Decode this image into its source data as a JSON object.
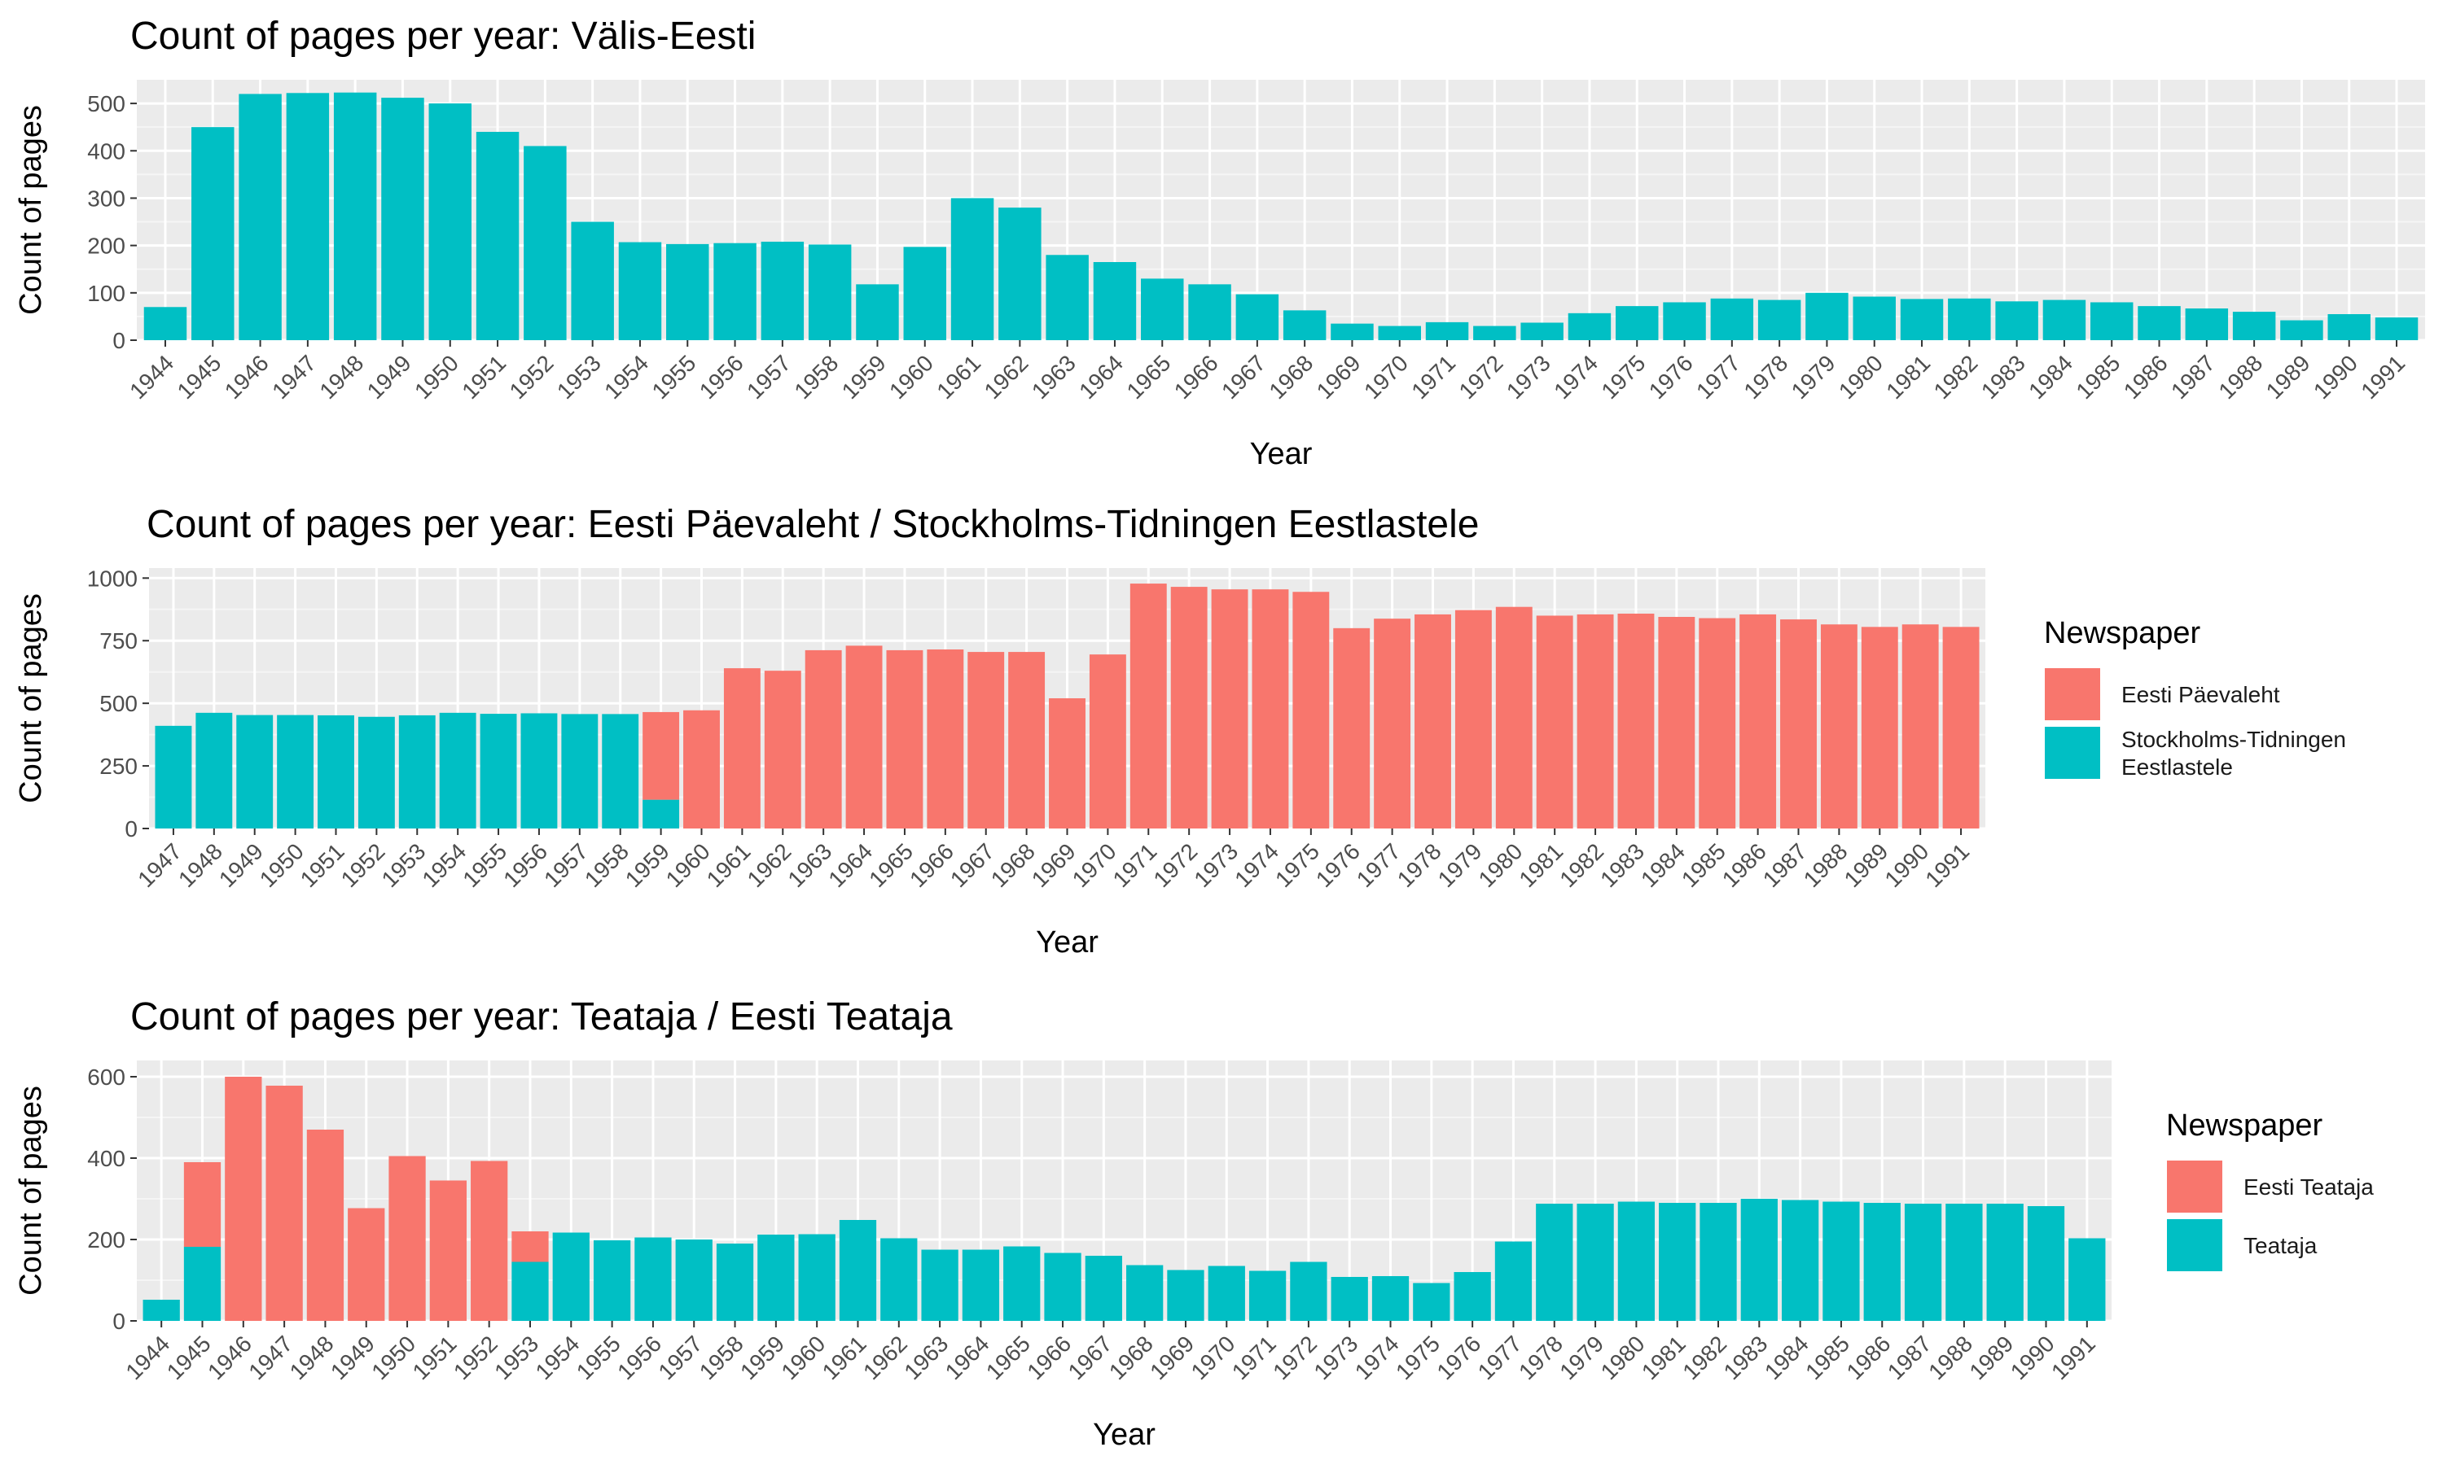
{
  "chart_data": [
    {
      "type": "bar",
      "title": "Count of pages per year: Välis-Eesti",
      "xlabel": "Year",
      "ylabel": "Count of pages",
      "ylim": [
        0,
        550
      ],
      "yticks": [
        0,
        100,
        200,
        300,
        400,
        500
      ],
      "categories": [
        "1944",
        "1945",
        "1946",
        "1947",
        "1948",
        "1949",
        "1950",
        "1951",
        "1952",
        "1953",
        "1954",
        "1955",
        "1956",
        "1957",
        "1958",
        "1959",
        "1960",
        "1961",
        "1962",
        "1963",
        "1964",
        "1965",
        "1966",
        "1967",
        "1968",
        "1969",
        "1970",
        "1971",
        "1972",
        "1973",
        "1974",
        "1975",
        "1976",
        "1977",
        "1978",
        "1979",
        "1980",
        "1981",
        "1982",
        "1983",
        "1984",
        "1985",
        "1986",
        "1987",
        "1988",
        "1989",
        "1990",
        "1991"
      ],
      "series": [
        {
          "color": "#00BFC4",
          "values": [
            70,
            450,
            520,
            522,
            523,
            512,
            500,
            440,
            410,
            250,
            207,
            203,
            205,
            208,
            202,
            118,
            197,
            300,
            280,
            180,
            165,
            130,
            118,
            97,
            63,
            35,
            30,
            38,
            30,
            37,
            57,
            72,
            80,
            88,
            85,
            100,
            92,
            87,
            88,
            82,
            85,
            80,
            72,
            67,
            60,
            42,
            55,
            48
          ]
        }
      ],
      "legend": null,
      "grid": true
    },
    {
      "type": "bar",
      "stacked": true,
      "title": "Count of pages per year: Eesti Päevaleht / Stockholms-Tidningen Eestlastele",
      "xlabel": "Year",
      "ylabel": "Count of pages",
      "ylim": [
        0,
        1040
      ],
      "yticks": [
        0,
        250,
        500,
        750,
        1000
      ],
      "categories": [
        "1947",
        "1948",
        "1949",
        "1950",
        "1951",
        "1952",
        "1953",
        "1954",
        "1955",
        "1956",
        "1957",
        "1958",
        "1959",
        "1960",
        "1961",
        "1962",
        "1963",
        "1964",
        "1965",
        "1966",
        "1967",
        "1968",
        "1969",
        "1970",
        "1971",
        "1972",
        "1973",
        "1974",
        "1975",
        "1976",
        "1977",
        "1978",
        "1979",
        "1980",
        "1981",
        "1982",
        "1983",
        "1984",
        "1985",
        "1986",
        "1987",
        "1988",
        "1989",
        "1990",
        "1991"
      ],
      "series": [
        {
          "name": "Stockholms-Tidningen Eestlastele",
          "color": "#00BFC4",
          "values": [
            410,
            462,
            453,
            453,
            452,
            446,
            452,
            462,
            458,
            460,
            457,
            457,
            115,
            0,
            0,
            0,
            0,
            0,
            0,
            0,
            0,
            0,
            0,
            0,
            0,
            0,
            0,
            0,
            0,
            0,
            0,
            0,
            0,
            0,
            0,
            0,
            0,
            0,
            0,
            0,
            0,
            0,
            0,
            0,
            0
          ]
        },
        {
          "name": "Eesti Päevaleht",
          "color": "#F8766D",
          "values": [
            0,
            0,
            0,
            0,
            0,
            0,
            0,
            0,
            0,
            0,
            0,
            0,
            350,
            472,
            640,
            630,
            712,
            730,
            712,
            715,
            705,
            705,
            520,
            695,
            978,
            965,
            955,
            955,
            945,
            800,
            838,
            855,
            872,
            885,
            850,
            855,
            858,
            845,
            840,
            855,
            835,
            815,
            805,
            815,
            805
          ]
        }
      ],
      "legend": {
        "title": "Newspaper",
        "entries": [
          {
            "label_lines": [
              "Eesti Päevaleht"
            ],
            "color": "#F8766D"
          },
          {
            "label_lines": [
              "Stockholms-Tidningen",
              "Eestlastele"
            ],
            "color": "#00BFC4"
          }
        ]
      },
      "grid": true
    },
    {
      "type": "bar",
      "stacked": true,
      "title": "Count of pages per year: Teataja / Eesti Teataja",
      "xlabel": "Year",
      "ylabel": "Count of pages",
      "ylim": [
        0,
        640
      ],
      "yticks": [
        0,
        200,
        400,
        600
      ],
      "categories": [
        "1944",
        "1945",
        "1946",
        "1947",
        "1948",
        "1949",
        "1950",
        "1951",
        "1952",
        "1953",
        "1954",
        "1955",
        "1956",
        "1957",
        "1958",
        "1959",
        "1960",
        "1961",
        "1962",
        "1963",
        "1964",
        "1965",
        "1966",
        "1967",
        "1968",
        "1969",
        "1970",
        "1971",
        "1972",
        "1973",
        "1974",
        "1975",
        "1976",
        "1977",
        "1978",
        "1979",
        "1980",
        "1981",
        "1982",
        "1983",
        "1984",
        "1985",
        "1986",
        "1987",
        "1988",
        "1989",
        "1990",
        "1991"
      ],
      "series": [
        {
          "name": "Teataja",
          "color": "#00BFC4",
          "values": [
            52,
            182,
            0,
            0,
            0,
            0,
            0,
            0,
            0,
            145,
            217,
            198,
            205,
            200,
            190,
            212,
            213,
            248,
            203,
            175,
            175,
            183,
            167,
            160,
            137,
            125,
            135,
            123,
            145,
            108,
            110,
            93,
            120,
            195,
            288,
            288,
            293,
            290,
            290,
            300,
            297,
            293,
            290,
            288,
            288,
            288,
            282,
            203
          ]
        },
        {
          "name": "Eesti Teataja",
          "color": "#F8766D",
          "values": [
            0,
            208,
            600,
            578,
            470,
            277,
            405,
            345,
            393,
            75,
            0,
            0,
            0,
            0,
            0,
            0,
            0,
            0,
            0,
            0,
            0,
            0,
            0,
            0,
            0,
            0,
            0,
            0,
            0,
            0,
            0,
            0,
            0,
            0,
            0,
            0,
            0,
            0,
            0,
            0,
            0,
            0,
            0,
            0,
            0,
            0,
            0,
            0
          ]
        }
      ],
      "legend": {
        "title": "Newspaper",
        "entries": [
          {
            "label_lines": [
              "Eesti Teataja"
            ],
            "color": "#F8766D"
          },
          {
            "label_lines": [
              "Teataja"
            ],
            "color": "#00BFC4"
          }
        ]
      },
      "grid": true
    }
  ]
}
